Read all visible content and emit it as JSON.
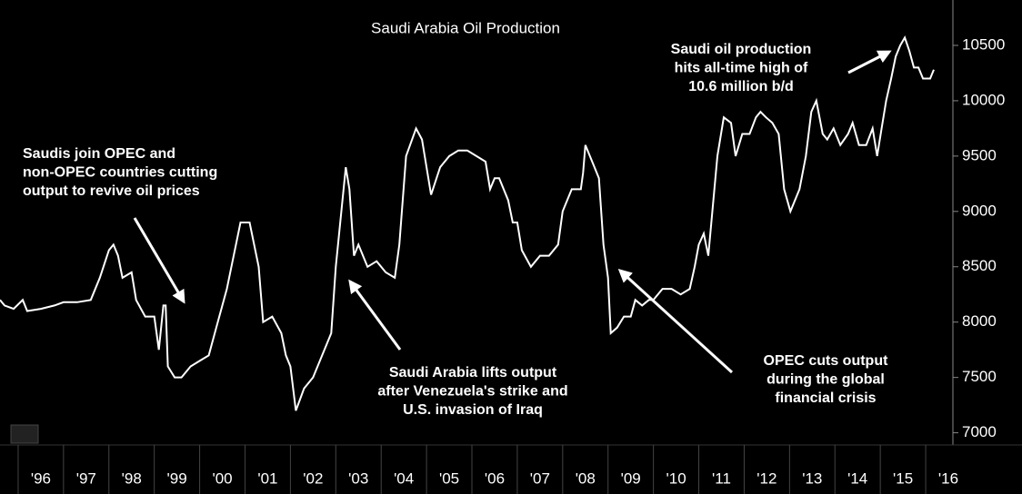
{
  "chart_data": {
    "type": "line",
    "title": "Saudi Arabia Oil Production",
    "color": "#ffffff",
    "x": [
      1995.6,
      1995.7,
      1995.9,
      1996.1,
      1996.2,
      1996.5,
      1996.8,
      1997.0,
      1997.3,
      1997.6,
      1997.8,
      1998.0,
      1998.1,
      1998.2,
      1998.3,
      1998.5,
      1998.6,
      1998.8,
      1999.0,
      1999.1,
      1999.2,
      1999.25,
      1999.3,
      1999.45,
      1999.6,
      1999.8,
      2000.0,
      2000.2,
      2000.4,
      2000.6,
      2000.8,
      2000.9,
      2001.1,
      2001.3,
      2001.4,
      2001.6,
      2001.8,
      2001.9,
      2002.0,
      2002.12,
      2002.3,
      2002.5,
      2002.7,
      2002.9,
      2003.0,
      2003.22,
      2003.3,
      2003.4,
      2003.5,
      2003.7,
      2003.9,
      2004.1,
      2004.3,
      2004.4,
      2004.55,
      2004.77,
      2004.9,
      2005.0,
      2005.1,
      2005.3,
      2005.5,
      2005.7,
      2005.9,
      2006.1,
      2006.3,
      2006.4,
      2006.5,
      2006.6,
      2006.8,
      2006.9,
      2007.0,
      2007.1,
      2007.3,
      2007.5,
      2007.7,
      2007.9,
      2008.0,
      2008.2,
      2008.4,
      2008.45,
      2008.5,
      2008.7,
      2008.8,
      2008.9,
      2009.0,
      2009.06,
      2009.2,
      2009.35,
      2009.5,
      2009.6,
      2009.75,
      2009.9,
      2010.0,
      2010.2,
      2010.4,
      2010.6,
      2010.8,
      2010.91,
      2011.0,
      2011.11,
      2011.21,
      2011.41,
      2011.55,
      2011.71,
      2011.81,
      2011.96,
      2012.12,
      2012.26,
      2012.36,
      2012.48,
      2012.62,
      2012.76,
      2012.88,
      2013.02,
      2013.22,
      2013.36,
      2013.48,
      2013.59,
      2013.73,
      2013.83,
      2013.97,
      2014.12,
      2014.29,
      2014.39,
      2014.53,
      2014.69,
      2014.83,
      2014.93,
      2015.03,
      2015.13,
      2015.24,
      2015.34,
      2015.44,
      2015.54,
      2015.64,
      2015.74,
      2015.84,
      2015.94,
      2016.1,
      2016.18
    ],
    "values": [
      8200,
      8150,
      8120,
      8200,
      8100,
      8120,
      8150,
      8180,
      8180,
      8200,
      8400,
      8650,
      8700,
      8600,
      8400,
      8450,
      8200,
      8050,
      8050,
      7750,
      8150,
      8150,
      7600,
      7500,
      7500,
      7600,
      7650,
      7700,
      8000,
      8300,
      8700,
      8900,
      8900,
      8500,
      8000,
      8050,
      7900,
      7700,
      7600,
      7200,
      7400,
      7500,
      7700,
      7900,
      8500,
      9400,
      9200,
      8600,
      8700,
      8500,
      8550,
      8450,
      8400,
      8700,
      9500,
      9750,
      9650,
      9400,
      9150,
      9400,
      9500,
      9550,
      9550,
      9500,
      9450,
      9200,
      9300,
      9300,
      9100,
      8900,
      8900,
      8650,
      8500,
      8600,
      8600,
      8700,
      9000,
      9200,
      9200,
      9350,
      9600,
      9400,
      9300,
      8700,
      8400,
      7900,
      7950,
      8050,
      8050,
      8200,
      8150,
      8200,
      8200,
      8300,
      8300,
      8250,
      8300,
      8500,
      8700,
      8800,
      8600,
      9500,
      9850,
      9800,
      9500,
      9700,
      9700,
      9850,
      9900,
      9850,
      9800,
      9700,
      9200,
      9000,
      9200,
      9500,
      9900,
      10000,
      9700,
      9650,
      9750,
      9600,
      9700,
      9800,
      9600,
      9600,
      9750,
      9500,
      9750,
      10000,
      10200,
      10400,
      10500,
      10570,
      10450,
      10300,
      10300,
      10200,
      10200,
      10280
    ],
    "xlim": [
      1995.6,
      2016.6
    ],
    "ylim": [
      6890,
      10910
    ],
    "xticks": [
      {
        "value": 1996,
        "label": "'96"
      },
      {
        "value": 1997,
        "label": "'97"
      },
      {
        "value": 1998,
        "label": "'98"
      },
      {
        "value": 1999,
        "label": "'99"
      },
      {
        "value": 2000,
        "label": "'00"
      },
      {
        "value": 2001,
        "label": "'01"
      },
      {
        "value": 2002,
        "label": "'02"
      },
      {
        "value": 2003,
        "label": "'03"
      },
      {
        "value": 2004,
        "label": "'04"
      },
      {
        "value": 2005,
        "label": "'05"
      },
      {
        "value": 2006,
        "label": "'06"
      },
      {
        "value": 2007,
        "label": "'07"
      },
      {
        "value": 2008,
        "label": "'08"
      },
      {
        "value": 2009,
        "label": "'09"
      },
      {
        "value": 2010,
        "label": "'10"
      },
      {
        "value": 2011,
        "label": "'11"
      },
      {
        "value": 2012,
        "label": "'12"
      },
      {
        "value": 2013,
        "label": "'13"
      },
      {
        "value": 2014,
        "label": "'14"
      },
      {
        "value": 2015,
        "label": "'15"
      },
      {
        "value": 2016,
        "label": "'16"
      }
    ],
    "yticks": [
      7000,
      7500,
      8000,
      8500,
      9000,
      9500,
      10000,
      10500
    ],
    "annotations": [
      [
        "Saudis join OPEC and",
        "non-OPEC countries cutting",
        "output to revive oil prices"
      ],
      [
        "Saudi Arabia lifts output",
        "after Venezuela's strike and",
        "U.S. invasion of Iraq"
      ],
      [
        "OPEC cuts output",
        "during the global",
        "financial crisis"
      ],
      [
        "Saudi oil production",
        "hits all-time high of",
        "10.6 million b/d"
      ]
    ]
  }
}
